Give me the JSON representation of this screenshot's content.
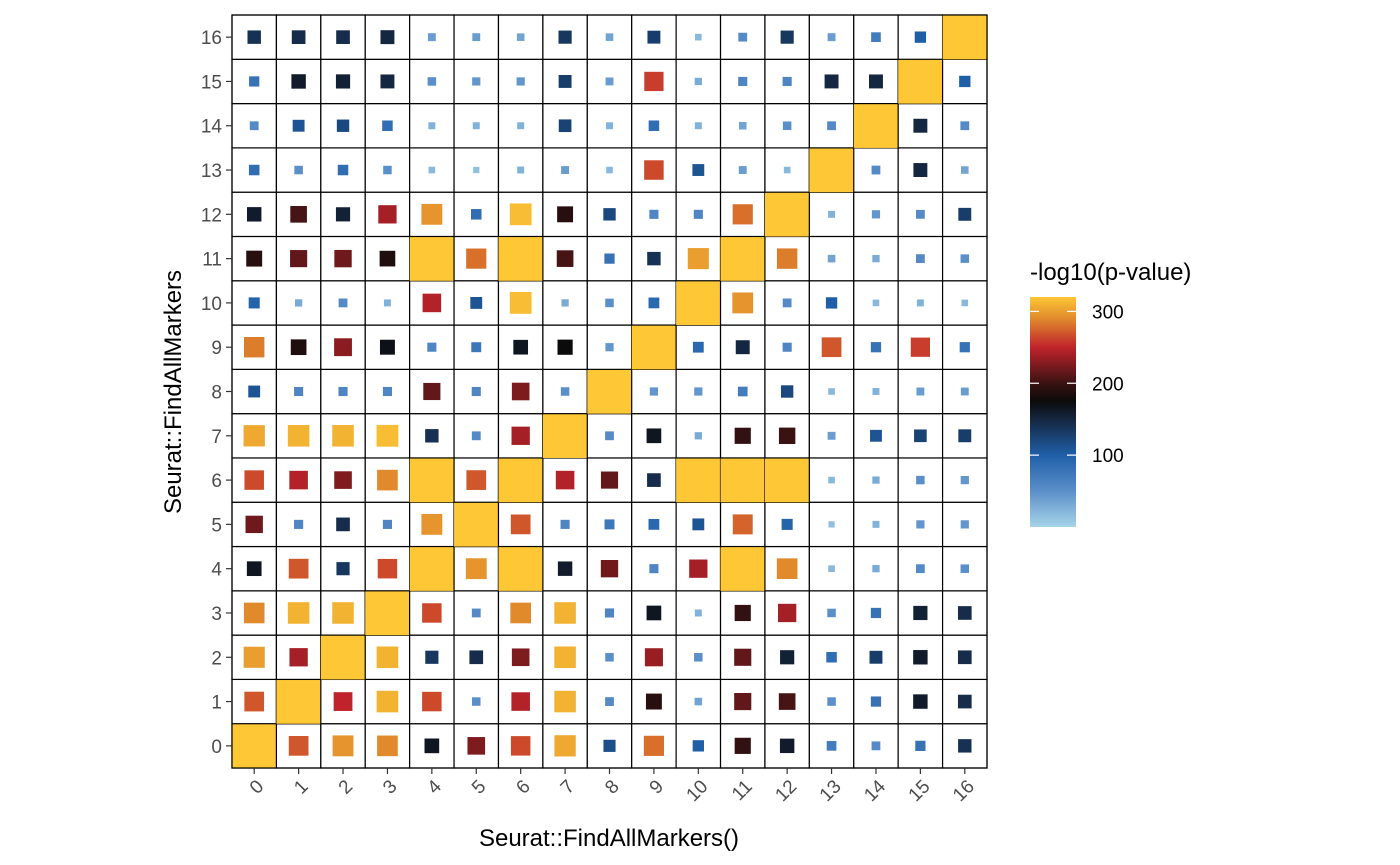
{
  "chart_data": {
    "type": "heatmap",
    "title": "",
    "xlabel": "Seurat::FindAllMarkers()",
    "ylabel": "Seurat::FindAllMarkers",
    "x_categories": [
      "0",
      "1",
      "2",
      "3",
      "4",
      "5",
      "6",
      "7",
      "8",
      "9",
      "10",
      "11",
      "12",
      "13",
      "14",
      "15",
      "16"
    ],
    "y_categories": [
      "0",
      "1",
      "2",
      "3",
      "4",
      "5",
      "6",
      "7",
      "8",
      "9",
      "10",
      "11",
      "12",
      "13",
      "14",
      "15",
      "16"
    ],
    "value_encoding": "-log10(p-value) shown by both square colour and square size",
    "color_scale": {
      "title": "-log10(p-value)",
      "ticks": [
        100,
        200,
        300
      ],
      "range": [
        0,
        320
      ],
      "stops": [
        {
          "value": 0,
          "color": "#a6d4e8"
        },
        {
          "value": 50,
          "color": "#5b8fc9"
        },
        {
          "value": 100,
          "color": "#1f5fa8"
        },
        {
          "value": 150,
          "color": "#152640"
        },
        {
          "value": 175,
          "color": "#0b0b0b"
        },
        {
          "value": 200,
          "color": "#3a1212"
        },
        {
          "value": 250,
          "color": "#c0232b"
        },
        {
          "value": 290,
          "color": "#e08a2c"
        },
        {
          "value": 320,
          "color": "#fdc735"
        }
      ]
    },
    "cell_border_color": "#000000",
    "matrix_comment_rows_are_y_values_bottom_to_top": "row index = y category, column index = x category",
    "values": [
      [
        320,
        270,
        295,
        290,
        165,
        225,
        265,
        305,
        115,
        280,
        100,
        195,
        160,
        70,
        55,
        80,
        140
      ],
      [
        270,
        320,
        250,
        310,
        265,
        50,
        245,
        310,
        55,
        190,
        35,
        215,
        205,
        50,
        80,
        160,
        145
      ],
      [
        300,
        240,
        320,
        310,
        135,
        145,
        225,
        310,
        50,
        235,
        50,
        215,
        155,
        85,
        130,
        160,
        145
      ],
      [
        290,
        310,
        310,
        320,
        265,
        55,
        290,
        310,
        60,
        165,
        25,
        195,
        240,
        50,
        80,
        155,
        145
      ],
      [
        165,
        270,
        135,
        265,
        320,
        295,
        320,
        160,
        220,
        60,
        240,
        320,
        290,
        20,
        30,
        55,
        50
      ],
      [
        220,
        60,
        145,
        60,
        295,
        320,
        270,
        60,
        75,
        90,
        110,
        275,
        95,
        15,
        25,
        45,
        45
      ],
      [
        265,
        245,
        225,
        290,
        320,
        270,
        320,
        245,
        215,
        145,
        320,
        320,
        320,
        20,
        30,
        50,
        45
      ],
      [
        305,
        310,
        310,
        315,
        140,
        55,
        240,
        320,
        55,
        165,
        30,
        195,
        200,
        40,
        110,
        125,
        130
      ],
      [
        110,
        60,
        60,
        60,
        215,
        60,
        225,
        50,
        320,
        45,
        45,
        70,
        120,
        20,
        25,
        40,
        40
      ],
      [
        285,
        185,
        230,
        170,
        60,
        75,
        165,
        175,
        45,
        320,
        90,
        150,
        60,
        270,
        80,
        260,
        80
      ],
      [
        95,
        30,
        55,
        25,
        245,
        110,
        315,
        30,
        50,
        90,
        320,
        295,
        55,
        100,
        20,
        25,
        20
      ],
      [
        190,
        215,
        220,
        185,
        320,
        280,
        320,
        205,
        80,
        140,
        300,
        320,
        285,
        35,
        30,
        55,
        50
      ],
      [
        160,
        205,
        155,
        240,
        295,
        85,
        315,
        190,
        120,
        60,
        60,
        280,
        320,
        25,
        45,
        55,
        130
      ],
      [
        85,
        50,
        85,
        50,
        20,
        15,
        25,
        40,
        20,
        265,
        110,
        40,
        20,
        320,
        55,
        150,
        35
      ],
      [
        55,
        110,
        120,
        85,
        25,
        25,
        25,
        125,
        25,
        85,
        25,
        35,
        50,
        55,
        320,
        150,
        55
      ],
      [
        80,
        160,
        155,
        150,
        50,
        45,
        45,
        130,
        40,
        260,
        30,
        60,
        60,
        150,
        150,
        320,
        100
      ],
      [
        140,
        145,
        145,
        150,
        40,
        40,
        35,
        135,
        35,
        130,
        20,
        55,
        135,
        40,
        70,
        100,
        320
      ]
    ]
  }
}
